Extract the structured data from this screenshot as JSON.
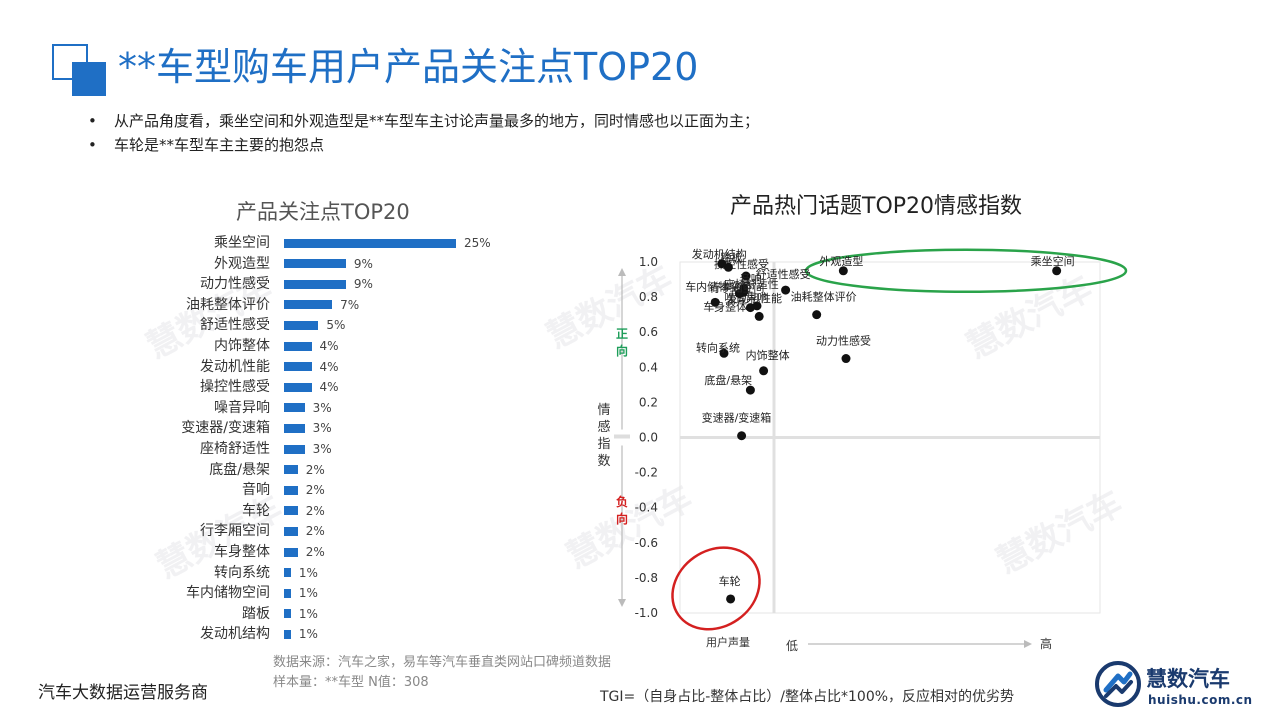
{
  "title": "**车型购车用户产品关注点TOP20",
  "bullets": [
    "从产品角度看，乘坐空间和外观造型是**车型车主讨论声量最多的地方，同时情感也以正面为主；",
    "车轮是**车型车主主要的抱怨点"
  ],
  "bullet_marker": "•",
  "watermark_text": "慧数汽车",
  "chart_data": [
    {
      "type": "bar",
      "orientation": "horizontal",
      "title": "产品关注点TOP20",
      "categories": [
        "乘坐空间",
        "外观造型",
        "动力性感受",
        "油耗整体评价",
        "舒适性感受",
        "内饰整体",
        "发动机性能",
        "操控性感受",
        "噪音异响",
        "变速器/变速箱",
        "座椅舒适性",
        "底盘/悬架",
        "音响",
        "车轮",
        "行李厢空间",
        "车身整体",
        "转向系统",
        "车内储物空间",
        "踏板",
        "发动机结构"
      ],
      "values": [
        25,
        9,
        9,
        7,
        5,
        4,
        4,
        4,
        3,
        3,
        3,
        2,
        2,
        2,
        2,
        2,
        1,
        1,
        1,
        1
      ],
      "value_labels": [
        "25%",
        "9%",
        "9%",
        "7%",
        "5%",
        "4%",
        "4%",
        "4%",
        "3%",
        "3%",
        "3%",
        "2%",
        "2%",
        "2%",
        "2%",
        "2%",
        "1%",
        "1%",
        "1%",
        "1%"
      ],
      "color": "#1F6FC5"
    },
    {
      "type": "scatter",
      "title": "产品热门话题TOP20情感指数",
      "ylabel": "情感指数",
      "xlabel": "用户声量",
      "x_low_label": "低",
      "x_high_label": "高",
      "positive_label": "正向",
      "negative_label": "负向",
      "ylim": [
        -1.0,
        1.0
      ],
      "yticks": [
        "1.0",
        "0.8",
        "0.6",
        "0.4",
        "0.2",
        "0.0",
        "-0.2",
        "-0.4",
        "-0.6",
        "-0.8",
        "-1.0"
      ],
      "xlim": [
        0,
        26
      ],
      "positive_color": "#1e9e5a",
      "negative_color": "#d42020",
      "points": [
        {
          "label": "乘坐空间",
          "x": 25,
          "y": 0.95
        },
        {
          "label": "外观造型",
          "x": 9,
          "y": 0.95
        },
        {
          "label": "动力性感受",
          "x": 9.2,
          "y": 0.45
        },
        {
          "label": "油耗整体评价",
          "x": 7,
          "y": 0.7
        },
        {
          "label": "舒适性感受",
          "x": 4.8,
          "y": 0.84
        },
        {
          "label": "内饰整体",
          "x": 3.8,
          "y": 0.38
        },
        {
          "label": "发动机性能",
          "x": 3.5,
          "y": 0.75
        },
        {
          "label": "操控性感受",
          "x": 3.0,
          "y": 0.92
        },
        {
          "label": "噪音异响",
          "x": 3.2,
          "y": 0.74
        },
        {
          "label": "变速器/变速箱",
          "x": 2.8,
          "y": 0.01
        },
        {
          "label": "座椅舒适性",
          "x": 2.9,
          "y": 0.83
        },
        {
          "label": "底盘/悬架",
          "x": 3.2,
          "y": 0.27
        },
        {
          "label": "音响",
          "x": 2.9,
          "y": 0.85
        },
        {
          "label": "车轮",
          "x": 2.3,
          "y": -0.92
        },
        {
          "label": "行李厢空间",
          "x": 2.7,
          "y": 0.82
        },
        {
          "label": "车身整体",
          "x": 3.6,
          "y": 0.69
        },
        {
          "label": "转向系统",
          "x": 2.0,
          "y": 0.48
        },
        {
          "label": "车内储物空间",
          "x": 1.6,
          "y": 0.77
        },
        {
          "label": "踏板",
          "x": 2.2,
          "y": 0.97
        },
        {
          "label": "发动机结构",
          "x": 1.9,
          "y": 0.99
        }
      ]
    }
  ],
  "footer": {
    "left": "汽车大数据运营服务商",
    "source": "数据来源：汽车之家，易车等汽车垂直类网站口碑频道数据",
    "sample": "样本量：**车型 N值：308",
    "formula": "TGI=（自身占比-整体占比）/整体占比*100%，反应相对的优劣势",
    "brand_name": "慧数汽车",
    "brand_url": "huishu.com.cn"
  }
}
